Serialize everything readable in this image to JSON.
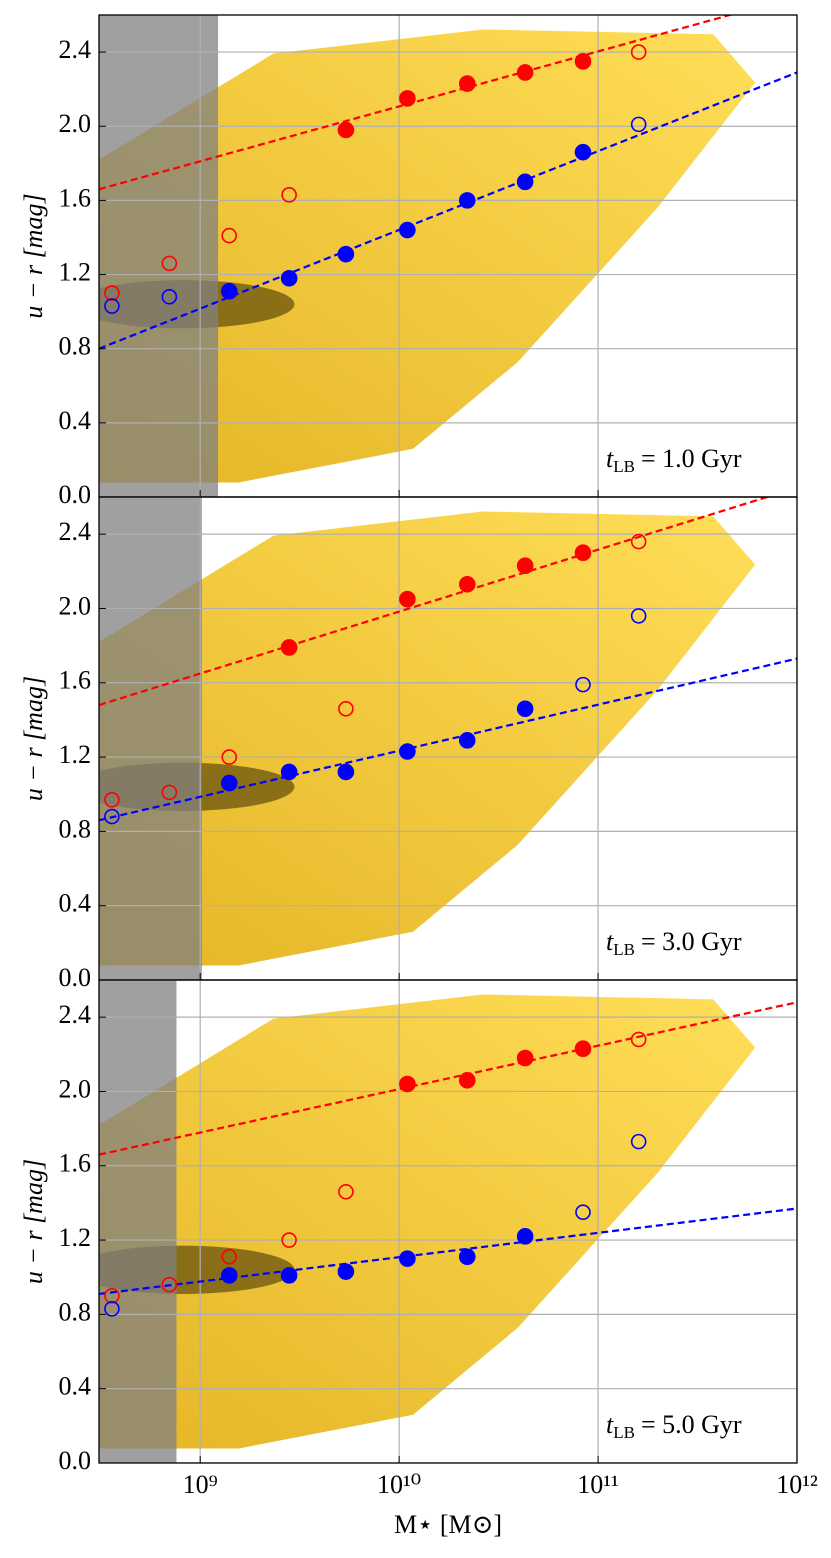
{
  "chart_data": [
    {
      "type": "scatter",
      "ylabel": "u − r [mag]",
      "annotation": {
        "symbol": "t",
        "subscript": "LB",
        "text": "= 1.0 Gyr"
      },
      "shaded_xmax": 1230000000,
      "xlim": [
        310000000,
        1000000000000
      ],
      "log_x": true,
      "grid": true,
      "xticklabels": false,
      "xticks": [
        {
          "value": 1000000000,
          "label": "10⁹"
        },
        {
          "value": 10000000000,
          "label": "10¹⁰"
        },
        {
          "value": 100000000000,
          "label": "10¹¹"
        },
        {
          "value": 1000000000000,
          "label": "10¹²"
        }
      ],
      "ylim": [
        0,
        2.6
      ],
      "yticks": [
        {
          "value": 0,
          "label": "0.0"
        },
        0.4,
        0.8,
        1.2,
        1.6,
        {
          "value": 2,
          "label": "2.0"
        },
        2.4
      ],
      "series": [
        {
          "color": "#ff0000",
          "marker": "filled",
          "x": [
            5400000000,
            11000000000,
            22000000000,
            43000000000,
            84000000000
          ],
          "values": [
            1.98,
            2.15,
            2.23,
            2.29,
            2.35
          ]
        },
        {
          "color": "#ff0000",
          "marker": "open",
          "x": [
            360000000,
            700000000,
            1400000000,
            2800000000,
            160000000000
          ],
          "values": [
            1.1,
            1.26,
            1.41,
            1.63,
            2.4
          ]
        },
        {
          "color": "#0000ff",
          "marker": "filled",
          "x": [
            1400000000,
            2800000000,
            5400000000,
            11000000000,
            22000000000,
            43000000000,
            84000000000
          ],
          "values": [
            1.11,
            1.18,
            1.31,
            1.44,
            1.6,
            1.7,
            1.86
          ]
        },
        {
          "color": "#0000ff",
          "marker": "open",
          "x": [
            360000000,
            700000000,
            160000000000
          ],
          "values": [
            1.03,
            1.08,
            2.01
          ]
        }
      ],
      "fit_lines": [
        {
          "color": "#ff0000",
          "linestyle": "dashed",
          "x": [
            310000000,
            1000000000000
          ],
          "values": [
            1.66,
            2.7
          ]
        },
        {
          "color": "#0000ff",
          "linestyle": "dashed",
          "x": [
            310000000,
            1000000000000
          ],
          "values": [
            0.8,
            2.29
          ]
        }
      ]
    },
    {
      "type": "scatter",
      "ylabel": "u − r [mag]",
      "annotation": {
        "symbol": "t",
        "subscript": "LB",
        "text": "= 3.0 Gyr"
      },
      "shaded_xmax": 1020000000,
      "xlim": [
        310000000,
        1000000000000
      ],
      "log_x": true,
      "grid": true,
      "xticklabels": false,
      "xticks": [
        {
          "value": 1000000000,
          "label": "10⁹"
        },
        {
          "value": 10000000000,
          "label": "10¹⁰"
        },
        {
          "value": 100000000000,
          "label": "10¹¹"
        },
        {
          "value": 1000000000000,
          "label": "10¹²"
        }
      ],
      "ylim": [
        0,
        2.6
      ],
      "yticks": [
        {
          "value": 0,
          "label": "0.0"
        },
        0.4,
        0.8,
        1.2,
        1.6,
        {
          "value": 2,
          "label": "2.0"
        },
        2.4
      ],
      "series": [
        {
          "color": "#ff0000",
          "marker": "filled",
          "x": [
            2800000000,
            11000000000,
            22000000000,
            43000000000,
            84000000000
          ],
          "values": [
            1.79,
            2.05,
            2.13,
            2.23,
            2.3
          ]
        },
        {
          "color": "#ff0000",
          "marker": "open",
          "x": [
            360000000,
            700000000,
            1400000000,
            5400000000,
            160000000000
          ],
          "values": [
            0.97,
            1.01,
            1.2,
            1.46,
            2.36
          ]
        },
        {
          "color": "#0000ff",
          "marker": "filled",
          "x": [
            1400000000,
            2800000000,
            5400000000,
            11000000000,
            22000000000,
            43000000000
          ],
          "values": [
            1.06,
            1.12,
            1.12,
            1.23,
            1.29,
            1.46
          ]
        },
        {
          "color": "#0000ff",
          "marker": "open",
          "x": [
            360000000,
            84000000000,
            160000000000
          ],
          "values": [
            0.88,
            1.59,
            1.96
          ]
        }
      ],
      "fit_lines": [
        {
          "color": "#ff0000",
          "linestyle": "dashed",
          "x": [
            310000000,
            1000000000000
          ],
          "values": [
            1.48,
            2.65
          ]
        },
        {
          "color": "#0000ff",
          "linestyle": "dashed",
          "x": [
            310000000,
            1000000000000
          ],
          "values": [
            0.86,
            1.73
          ]
        }
      ]
    },
    {
      "type": "scatter",
      "ylabel": "u − r [mag]",
      "xlabel": "M⋆ [M⊙]",
      "annotation": {
        "symbol": "t",
        "subscript": "LB",
        "text": "= 5.0 Gyr"
      },
      "shaded_xmax": 760000000,
      "xlim": [
        310000000,
        1000000000000
      ],
      "log_x": true,
      "grid": true,
      "xticklabels": true,
      "xticks": [
        {
          "value": 1000000000,
          "label": "10⁹"
        },
        {
          "value": 10000000000,
          "label": "10¹⁰"
        },
        {
          "value": 100000000000,
          "label": "10¹¹"
        },
        {
          "value": 1000000000000,
          "label": "10¹²"
        }
      ],
      "ylim": [
        0,
        2.6
      ],
      "yticks": [
        {
          "value": 0,
          "label": "0.0"
        },
        0.4,
        0.8,
        1.2,
        1.6,
        {
          "value": 2,
          "label": "2.0"
        },
        2.4
      ],
      "series": [
        {
          "color": "#ff0000",
          "marker": "filled",
          "x": [
            11000000000,
            22000000000,
            43000000000,
            84000000000
          ],
          "values": [
            2.04,
            2.06,
            2.18,
            2.23
          ]
        },
        {
          "color": "#ff0000",
          "marker": "open",
          "x": [
            360000000,
            700000000,
            1400000000,
            2800000000,
            5400000000,
            160000000000
          ],
          "values": [
            0.9,
            0.96,
            1.11,
            1.2,
            1.46,
            2.28
          ]
        },
        {
          "color": "#0000ff",
          "marker": "filled",
          "x": [
            1400000000,
            2800000000,
            5400000000,
            11000000000,
            22000000000,
            43000000000
          ],
          "values": [
            1.01,
            1.01,
            1.03,
            1.1,
            1.11,
            1.22
          ]
        },
        {
          "color": "#0000ff",
          "marker": "open",
          "x": [
            360000000,
            84000000000,
            160000000000
          ],
          "values": [
            0.83,
            1.35,
            1.73
          ]
        }
      ],
      "fit_lines": [
        {
          "color": "#ff0000",
          "linestyle": "dashed",
          "x": [
            310000000,
            1000000000000
          ],
          "values": [
            1.66,
            2.48
          ]
        },
        {
          "color": "#0000ff",
          "linestyle": "dashed",
          "x": [
            310000000,
            1000000000000
          ],
          "values": [
            0.91,
            1.37
          ]
        }
      ]
    }
  ]
}
